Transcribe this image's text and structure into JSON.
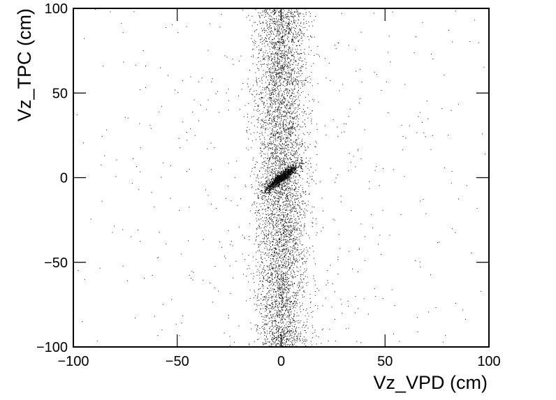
{
  "chart_data": {
    "type": "scatter",
    "xlabel": "Vz_VPD (cm)",
    "ylabel": "Vz_TPC (cm)",
    "xlim": [
      -100,
      100
    ],
    "ylim": [
      -100,
      100
    ],
    "x_ticks": [
      -100,
      -50,
      0,
      50,
      100
    ],
    "y_ticks": [
      -100,
      -50,
      0,
      50,
      100
    ],
    "x_tick_labels": [
      "−100",
      "−50",
      "0",
      "50",
      "100"
    ],
    "y_tick_labels": [
      "−100",
      "−50",
      "0",
      "50",
      "100"
    ],
    "grid": false,
    "marker_color": "#000000",
    "points": {
      "band": {
        "count": 5200,
        "x_center": 0,
        "x_sigma": 6,
        "y_range": [
          -100,
          100
        ]
      },
      "core": {
        "count": 1200,
        "center": [
          0,
          0
        ],
        "sigma": 4,
        "correlation": 0.9
      },
      "background": {
        "count": 1400,
        "x_range": [
          -100,
          100
        ],
        "y_range": [
          -100,
          100
        ]
      }
    }
  }
}
